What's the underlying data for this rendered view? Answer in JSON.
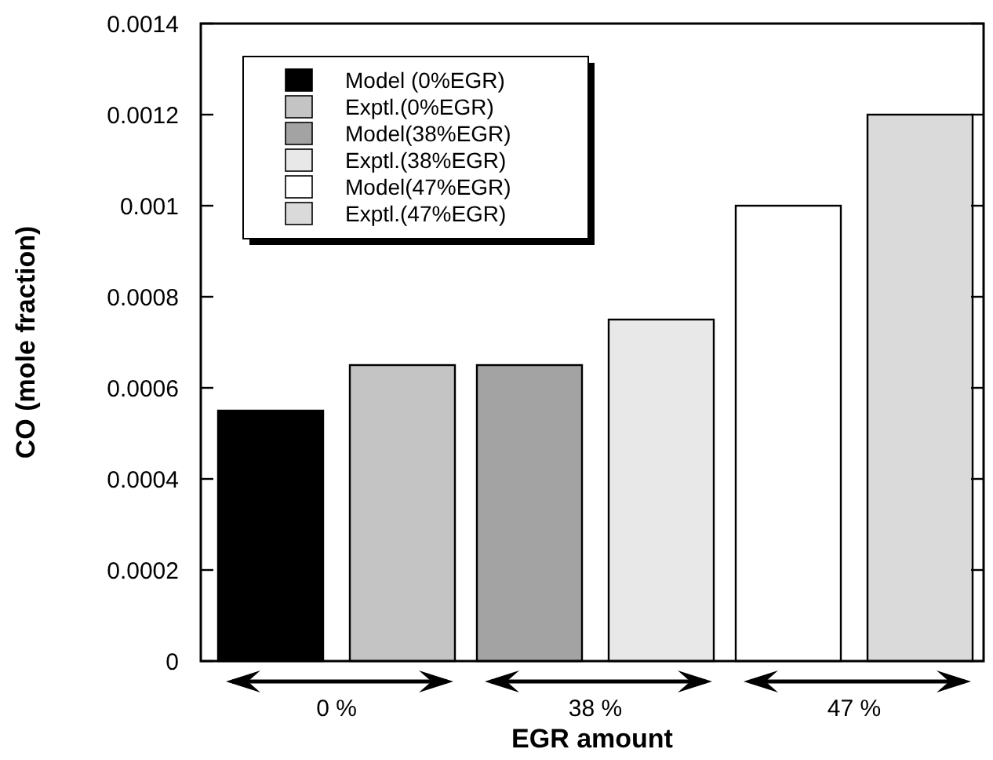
{
  "chart_data": {
    "type": "bar",
    "xlabel": "EGR amount",
    "ylabel": "CO (mole fraction)",
    "categories": [
      "0 %",
      "38 %",
      "47 %"
    ],
    "series": [
      {
        "name": "Model (0%EGR)",
        "color": "#000000",
        "values": [
          0.00055,
          null,
          null
        ]
      },
      {
        "name": "Exptl.(0%EGR)",
        "color": "#c4c4c4",
        "values": [
          0.00065,
          null,
          null
        ]
      },
      {
        "name": "Model(38%EGR)",
        "color": "#a3a3a3",
        "values": [
          null,
          0.00065,
          null
        ]
      },
      {
        "name": "Exptl.(38%EGR)",
        "color": "#e8e8e8",
        "values": [
          null,
          0.00075,
          null
        ]
      },
      {
        "name": "Model(47%EGR)",
        "color": "#ffffff",
        "values": [
          null,
          null,
          0.001
        ]
      },
      {
        "name": "Exptl.(47%EGR)",
        "color": "#dadada",
        "values": [
          null,
          null,
          0.0012
        ]
      }
    ],
    "ylim": [
      0,
      0.0014
    ],
    "yticks": [
      0,
      0.0002,
      0.0004,
      0.0006,
      0.0008,
      0.001,
      0.0012,
      0.0014
    ],
    "legend": "top left",
    "grid": false
  }
}
